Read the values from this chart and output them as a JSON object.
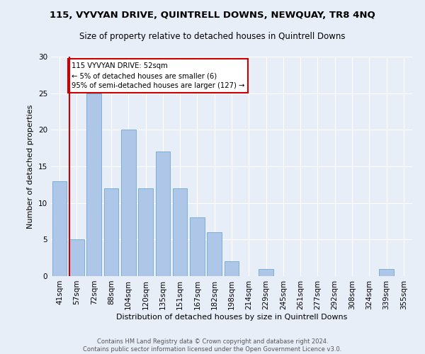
{
  "title1": "115, VYVYAN DRIVE, QUINTRELL DOWNS, NEWQUAY, TR8 4NQ",
  "title2": "Size of property relative to detached houses in Quintrell Downs",
  "xlabel": "Distribution of detached houses by size in Quintrell Downs",
  "ylabel": "Number of detached properties",
  "categories": [
    "41sqm",
    "57sqm",
    "72sqm",
    "88sqm",
    "104sqm",
    "120sqm",
    "135sqm",
    "151sqm",
    "167sqm",
    "182sqm",
    "198sqm",
    "214sqm",
    "229sqm",
    "245sqm",
    "261sqm",
    "277sqm",
    "292sqm",
    "308sqm",
    "324sqm",
    "339sqm",
    "355sqm"
  ],
  "values": [
    13,
    5,
    25,
    12,
    20,
    12,
    17,
    12,
    8,
    6,
    2,
    0,
    1,
    0,
    0,
    0,
    0,
    0,
    0,
    1,
    0
  ],
  "bar_color": "#aec6e8",
  "bar_edge_color": "#7aafd4",
  "annotation_text": "115 VYVYAN DRIVE: 52sqm\n← 5% of detached houses are smaller (6)\n95% of semi-detached houses are larger (127) →",
  "annotation_box_color": "#ffffff",
  "annotation_box_edge_color": "#cc0000",
  "vline_x_index": 1,
  "vline_color": "#cc0000",
  "ylim": [
    0,
    30
  ],
  "yticks": [
    0,
    5,
    10,
    15,
    20,
    25,
    30
  ],
  "footer1": "Contains HM Land Registry data © Crown copyright and database right 2024.",
  "footer2": "Contains public sector information licensed under the Open Government Licence v3.0.",
  "background_color": "#e8eef8",
  "plot_background_color": "#e8eef8",
  "grid_color": "#ffffff",
  "title1_fontsize": 9.5,
  "title2_fontsize": 8.5,
  "ylabel_fontsize": 8.0,
  "xlabel_fontsize": 8.0,
  "tick_fontsize": 7.5,
  "footer_fontsize": 6.0
}
